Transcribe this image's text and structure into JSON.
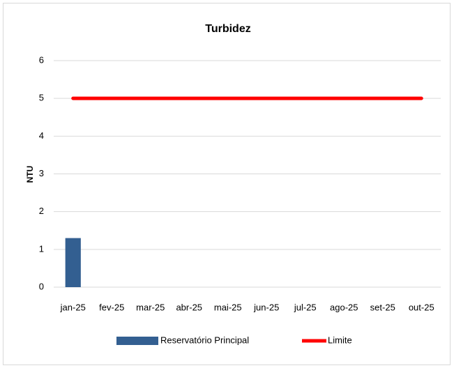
{
  "chart_data": {
    "type": "bar",
    "title": "Turbidez",
    "y_label": "NTU",
    "categories": [
      "jan-25",
      "fev-25",
      "mar-25",
      "abr-25",
      "mai-25",
      "jun-25",
      "jul-25",
      "ago-25",
      "set-25",
      "out-25"
    ],
    "series": [
      {
        "name": "Reservatório Principal",
        "type": "bar",
        "color": "#335f91",
        "values": [
          1.3,
          null,
          null,
          null,
          null,
          null,
          null,
          null,
          null,
          null
        ]
      },
      {
        "name": "Limite",
        "type": "line",
        "color": "#ff0000",
        "values": [
          5,
          5,
          5,
          5,
          5,
          5,
          5,
          5,
          5,
          5
        ]
      }
    ],
    "ylim": [
      0,
      6
    ],
    "yticks": [
      0,
      1,
      2,
      3,
      4,
      5,
      6
    ],
    "grid": true,
    "legend": "bottom"
  }
}
